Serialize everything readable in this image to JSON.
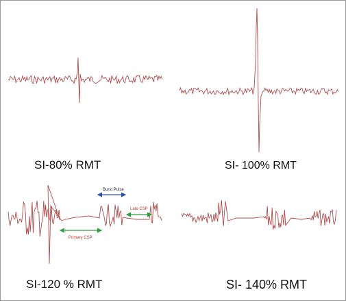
{
  "colors": {
    "trace": "#b04a4a",
    "burst_arrow": "#2a55b8",
    "csp_arrow": "#2e9e3e",
    "late_label": "#c0392b",
    "primary_label": "#c0392b"
  },
  "panels": [
    {
      "caption": "SI-80% RMT"
    },
    {
      "caption": "SI- 100% RMT"
    },
    {
      "caption": "SI-120 % RMT"
    },
    {
      "caption": "SI- 140% RMT"
    }
  ],
  "annotations": {
    "burst_pulse": "Burst Pulse",
    "late_csp": "Late CSP",
    "primary_csp": "Primary CSP"
  }
}
